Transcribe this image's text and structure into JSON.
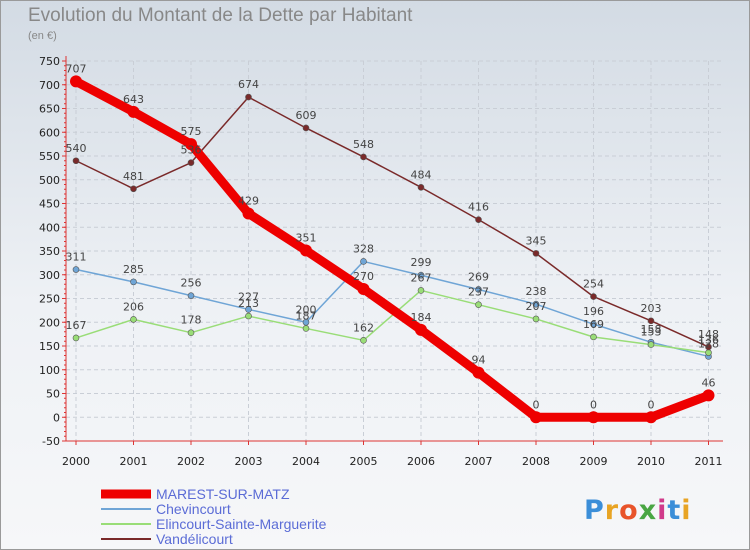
{
  "title": "Evolution du Montant de la Dette par Habitant",
  "subtitle": "(en €)",
  "logo": {
    "text": "Proxiti",
    "colors": [
      "#3b8ed8",
      "#e8a424",
      "#e8542a",
      "#49a643",
      "#d03a8a",
      "#3b8ed8",
      "#e8a424"
    ]
  },
  "chart_data": {
    "type": "line",
    "x": [
      "2000",
      "2001",
      "2002",
      "2003",
      "2004",
      "2005",
      "2006",
      "2007",
      "2008",
      "2009",
      "2010",
      "2011"
    ],
    "yticks": [
      -50,
      0,
      50,
      100,
      150,
      200,
      250,
      300,
      350,
      400,
      450,
      500,
      550,
      600,
      650,
      700,
      750
    ],
    "ylim": [
      -50,
      750
    ],
    "grid": true,
    "series": [
      {
        "name": "MAREST-SUR-MATZ",
        "color": "#ee0000",
        "values": [
          707,
          643,
          575,
          429,
          351,
          270,
          184,
          94,
          0,
          0,
          0,
          46
        ]
      },
      {
        "name": "Chevincourt",
        "color": "#6fa5d6",
        "values": [
          311,
          285,
          256,
          227,
          200,
          328,
          299,
          269,
          238,
          196,
          158,
          128
        ]
      },
      {
        "name": "Elincourt-Sainte-Marguerite",
        "color": "#99dd77",
        "values": [
          167,
          206,
          178,
          213,
          187,
          162,
          267,
          237,
          207,
          169,
          153,
          136
        ]
      },
      {
        "name": "Vandélicourt",
        "color": "#7a2a2a",
        "values": [
          540,
          481,
          536,
          674,
          609,
          548,
          484,
          416,
          345,
          254,
          203,
          148
        ]
      }
    ],
    "legend_position": "bottom-left"
  }
}
